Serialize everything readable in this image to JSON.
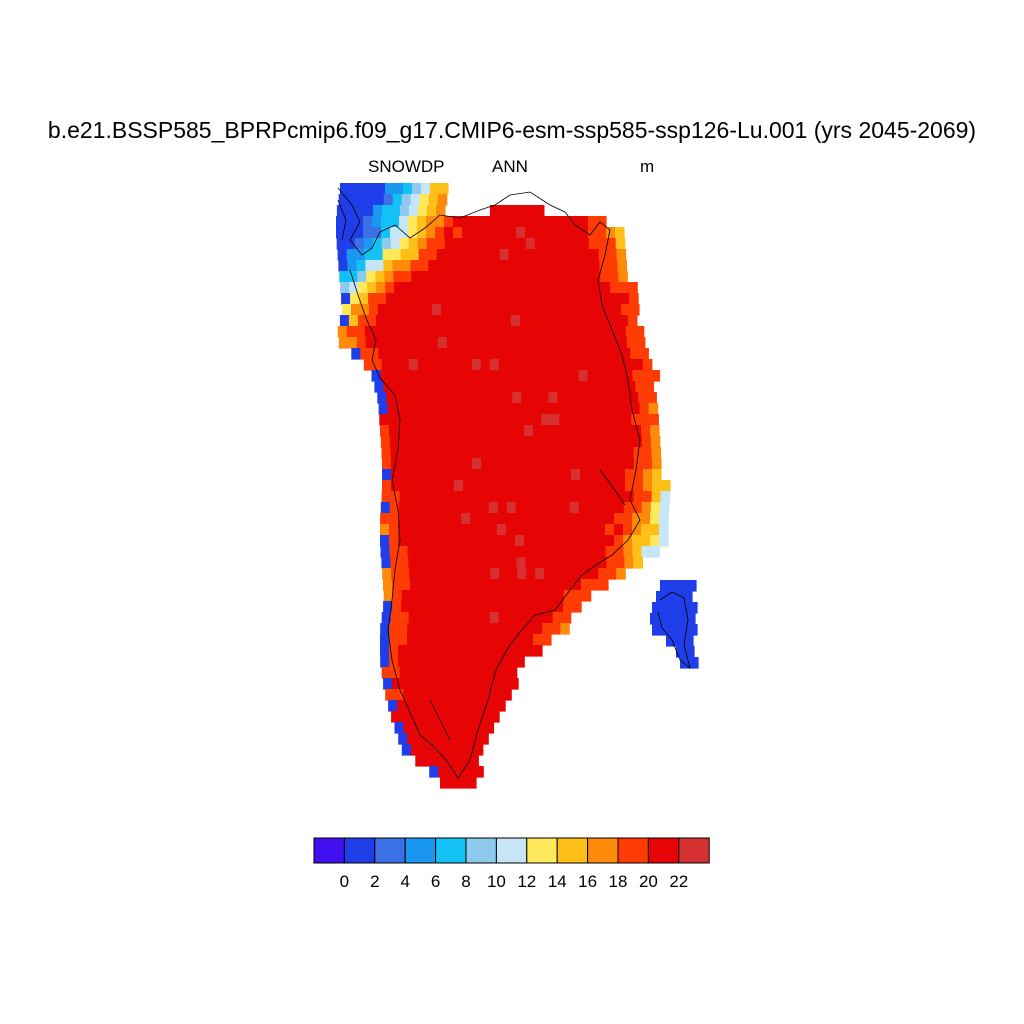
{
  "title": "b.e21.BSSP585_BPRPcmip6.f09_g17.CMIP6-esm-ssp585-ssp126-Lu.001 (yrs 2045-2069)",
  "subtitle_left": "SNOWDP",
  "subtitle_center": "ANN",
  "subtitle_right": "m",
  "colorbar": {
    "colors": [
      "#4010f0",
      "#1f3de8",
      "#3a71e6",
      "#1a97f0",
      "#13c2f5",
      "#8ecaee",
      "#c6e6f7",
      "#ffe95a",
      "#fec018",
      "#fe8a0a",
      "#fe3c04",
      "#e60404",
      "#d73030"
    ],
    "tick_labels": [
      "0",
      "2",
      "4",
      "6",
      "8",
      "10",
      "12",
      "14",
      "16",
      "18",
      "20",
      "22"
    ]
  }
}
